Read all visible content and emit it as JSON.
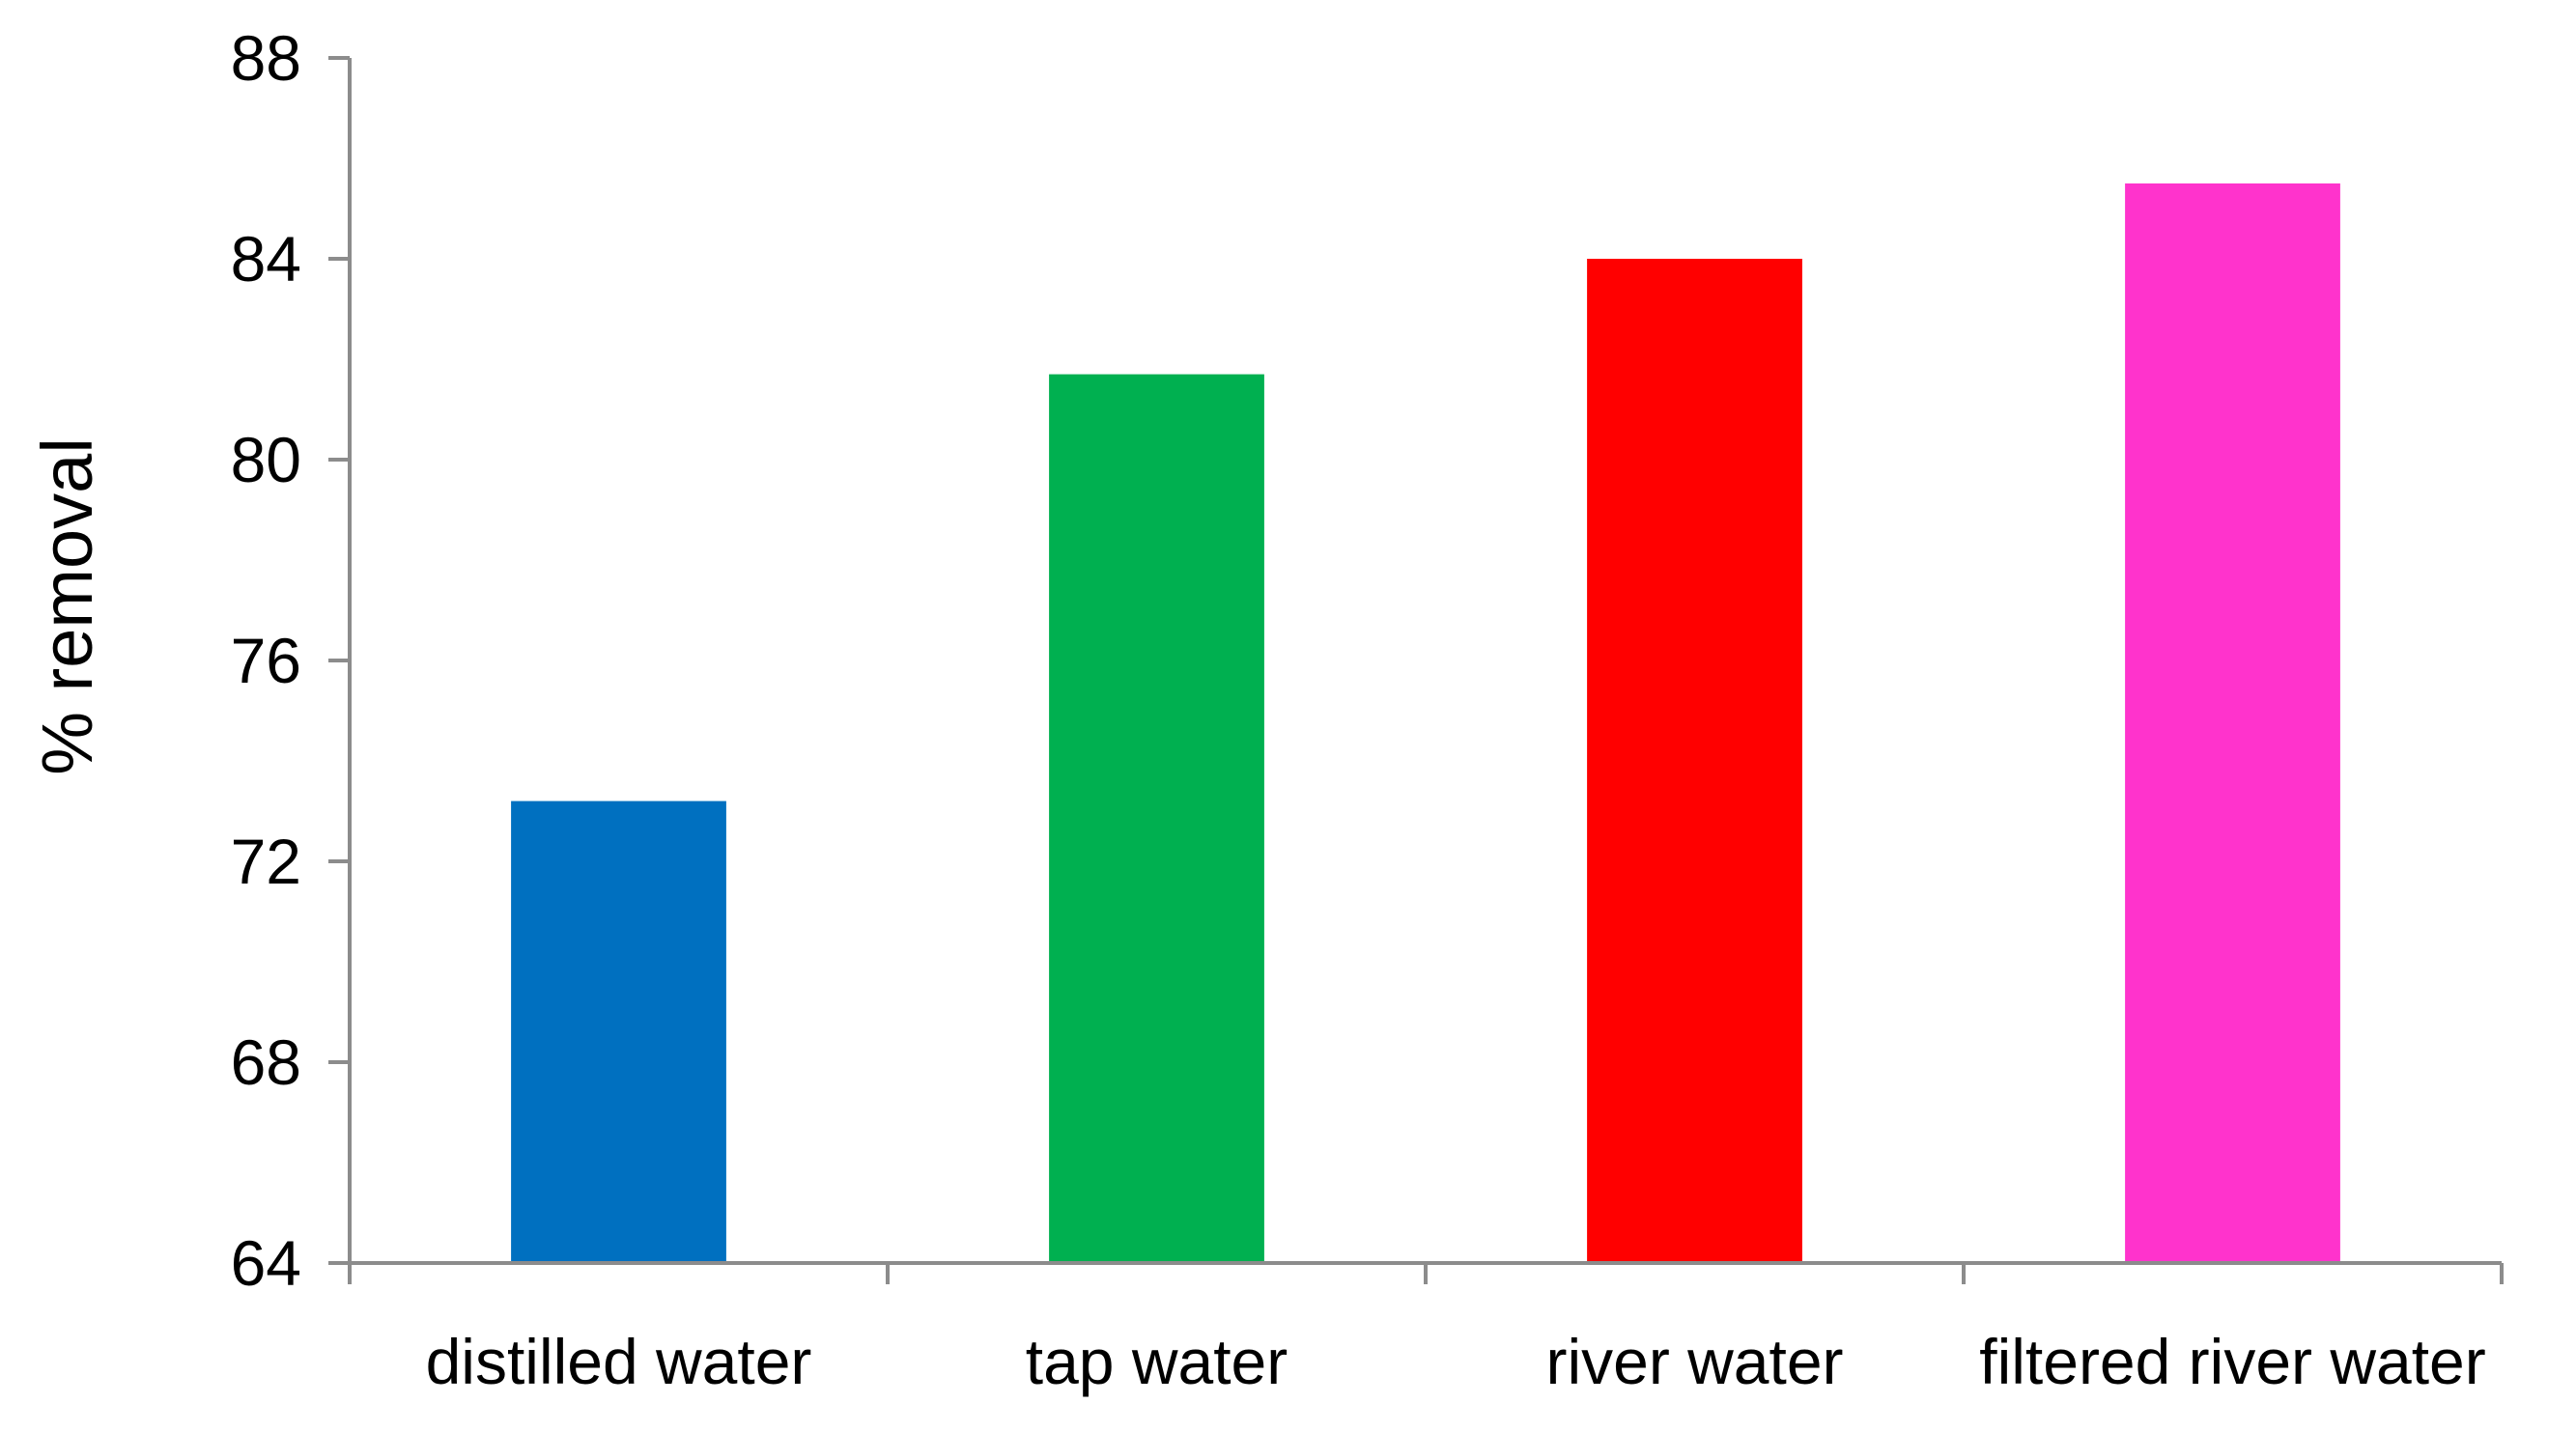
{
  "chart_data": {
    "type": "bar",
    "title": "",
    "xlabel": "",
    "ylabel": "% removal",
    "categories": [
      "distilled water",
      "tap water",
      "river water",
      "filtered river water"
    ],
    "values": [
      73.2,
      81.7,
      84.0,
      85.5
    ],
    "colors": [
      "#0070c0",
      "#00b050",
      "#ff0000",
      "#ff33cc"
    ],
    "ylim": [
      64,
      88
    ],
    "yticks": [
      64,
      68,
      72,
      76,
      80,
      84,
      88
    ],
    "grid": false,
    "legend": "none"
  }
}
